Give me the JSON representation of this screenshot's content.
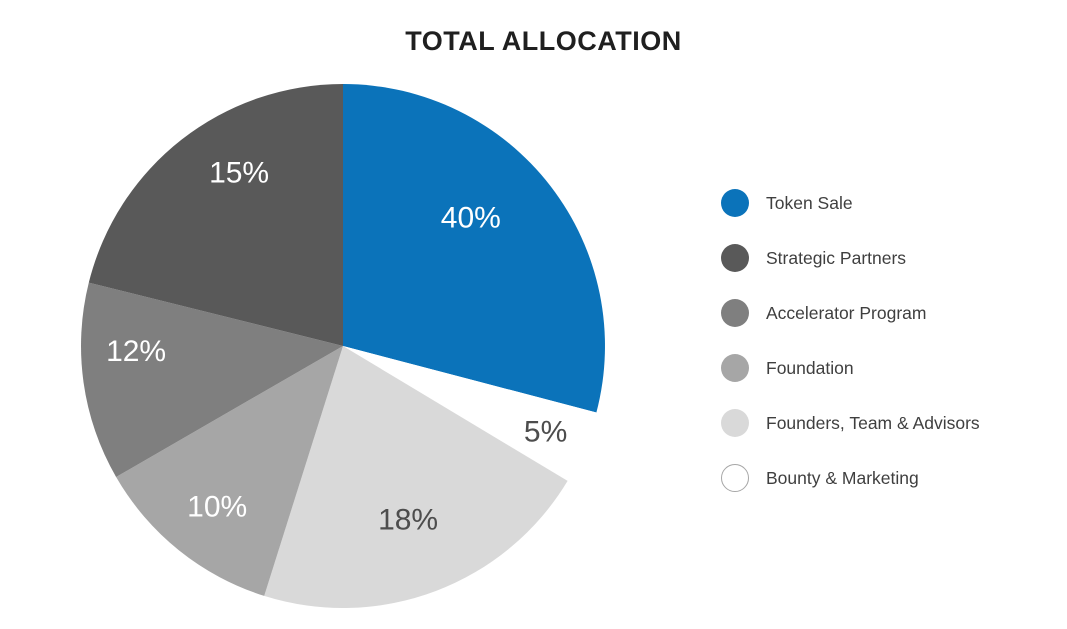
{
  "colors": {
    "accent_blue": "#0b73ba",
    "title_text": "#1f1f1f",
    "legend_text": "#3f3f3f",
    "dark_value_label": "#4d4d4d",
    "background": "#ffffff"
  },
  "chart_data": {
    "type": "pie",
    "title": "TOTAL ALLOCATION",
    "legend_position": "right",
    "total": 100,
    "categories": [
      "Token Sale",
      "Strategic Partners",
      "Accelerator Program",
      "Foundation",
      "Founders, Team & Advisors",
      "Bounty & Marketing"
    ],
    "values": [
      40,
      15,
      12,
      10,
      18,
      5
    ],
    "slices": [
      {
        "label": "Token Sale",
        "value": 40,
        "display": "40%",
        "color": "#0b73ba",
        "label_color": "#ffffff",
        "start_deg": 0,
        "end_deg": 104.7,
        "label_deg": 45,
        "label_r": 0.69
      },
      {
        "label": "Bounty & Marketing",
        "value": 5,
        "display": "5%",
        "color": "#ffffff",
        "label_color": "#4d4d4d",
        "start_deg": 104.7,
        "end_deg": 121,
        "label_deg": 113,
        "label_r": 0.84
      },
      {
        "label": "Founders, Team & Advisors",
        "value": 18,
        "display": "18%",
        "color": "#d9d9d9",
        "label_color": "#4d4d4d",
        "start_deg": 121,
        "end_deg": 197.5,
        "label_deg": 159.5,
        "label_r": 0.71
      },
      {
        "label": "Foundation",
        "value": 10,
        "display": "10%",
        "color": "#a6a6a6",
        "label_color": "#ffffff",
        "start_deg": 197.5,
        "end_deg": 240,
        "label_deg": 218,
        "label_r": 0.78
      },
      {
        "label": "Accelerator Program",
        "value": 12,
        "display": "12%",
        "color": "#7f7f7f",
        "label_color": "#ffffff",
        "start_deg": 240,
        "end_deg": 284,
        "label_deg": 268.5,
        "label_r": 0.79
      },
      {
        "label": "Strategic Partners",
        "value": 15,
        "display": "15%",
        "color": "#595959",
        "label_color": "#ffffff",
        "start_deg": 284,
        "end_deg": 360,
        "label_deg": 329,
        "label_r": 0.77
      }
    ],
    "legend": [
      {
        "label": "Token Sale",
        "color": "#0b73ba",
        "outline": false
      },
      {
        "label": "Strategic Partners",
        "color": "#595959",
        "outline": false
      },
      {
        "label": "Accelerator Program",
        "color": "#7f7f7f",
        "outline": false
      },
      {
        "label": "Foundation",
        "color": "#a6a6a6",
        "outline": false
      },
      {
        "label": "Founders, Team & Advisors",
        "color": "#d9d9d9",
        "outline": false
      },
      {
        "label": "Bounty & Marketing",
        "color": "#ffffff",
        "outline": true,
        "outline_color": "#a6a6a6"
      }
    ]
  }
}
